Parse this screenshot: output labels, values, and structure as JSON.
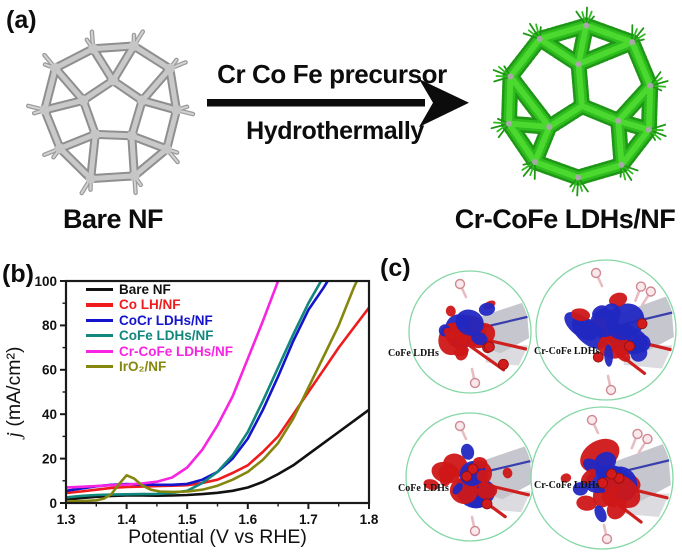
{
  "figure": {
    "panel_a": {
      "label": "(a)",
      "arrow_text_top": "Cr Co Fe precursor",
      "arrow_text_bottom": "Hydrothermally",
      "left_structure_label": "Bare NF",
      "right_structure_label": "Cr-CoFe LDHs/NF",
      "bare_color": "#c6c6c6",
      "ldh_color": "#2fbc1f"
    },
    "panel_b": {
      "label": "(b)"
    },
    "panel_c": {
      "label": "(c)",
      "ring_color": "#86d7a6",
      "lobe_colors": {
        "positive": "#cf1717",
        "negative": "#2128c2"
      },
      "circles": [
        {
          "label": "CoFe LDHs"
        },
        {
          "label": "Cr-CoFe LDHs"
        },
        {
          "label": "CoFe LDHs"
        },
        {
          "label": "Cr-CoFe LDHs"
        }
      ]
    }
  },
  "chart_data": {
    "type": "line",
    "title": "",
    "xlabel": "Potential (V vs RHE)",
    "ylabel": "j (mA/cm²)",
    "xlim": [
      1.3,
      1.8
    ],
    "ylim": [
      0,
      100
    ],
    "xticks": [
      "1.3",
      "1.4",
      "1.5",
      "1.6",
      "1.7",
      "1.8"
    ],
    "yticks": [
      "0",
      "20",
      "40",
      "60",
      "80",
      "100"
    ],
    "x_minor_step": 0.05,
    "y_minor_step": 10,
    "grid": false,
    "legend_position": "top-left",
    "x": [
      1.3,
      1.325,
      1.35,
      1.375,
      1.4,
      1.425,
      1.45,
      1.475,
      1.5,
      1.525,
      1.55,
      1.575,
      1.6,
      1.625,
      1.65,
      1.675,
      1.7,
      1.725,
      1.75,
      1.775,
      1.8
    ],
    "series": [
      {
        "name": "Bare NF",
        "color": "#111111",
        "values": [
          1.5,
          2.2,
          2.8,
          3.2,
          3.4,
          3.4,
          3.3,
          3.4,
          3.6,
          4,
          4.6,
          5.5,
          7,
          9.5,
          13,
          17,
          22,
          27,
          32,
          37,
          42
        ]
      },
      {
        "name": "Co LH/NF",
        "color": "#ee1c1c",
        "values": [
          4.5,
          5.2,
          6,
          6.8,
          7.2,
          7.4,
          7.6,
          7.8,
          8,
          9,
          10.5,
          13.5,
          17,
          23,
          30,
          40,
          50,
          60,
          70,
          79,
          88
        ]
      },
      {
        "name": "CoCr LDHs/NF",
        "color": "#1414cc",
        "values": [
          5.5,
          6.5,
          7.5,
          8.2,
          8.5,
          8.3,
          8.2,
          8.2,
          8.6,
          10.5,
          14,
          20,
          29,
          42,
          57,
          73,
          87,
          97,
          108,
          119,
          130
        ]
      },
      {
        "name": "CoFe LDHs/NF",
        "color": "#12877d",
        "values": [
          2.5,
          3.2,
          3.6,
          3.8,
          3.9,
          4,
          4.1,
          4.5,
          5.5,
          9,
          14,
          21.5,
          32,
          46,
          61,
          76,
          90,
          102,
          114,
          126,
          138
        ]
      },
      {
        "name": "Cr-CoFe LDHs/NF",
        "color": "#f724e2",
        "values": [
          7,
          7.3,
          7.6,
          8,
          8.3,
          8.8,
          9.6,
          11.5,
          16,
          24,
          35,
          48,
          65,
          82,
          100,
          117,
          134,
          151,
          168,
          185,
          202
        ]
      },
      {
        "name": "IrO₂/NF",
        "color": "#85860d",
        "x": [
          1.3,
          1.325,
          1.35,
          1.3625,
          1.375,
          1.3875,
          1.4,
          1.4125,
          1.425,
          1.44,
          1.455,
          1.475,
          1.5,
          1.525,
          1.55,
          1.575,
          1.6,
          1.625,
          1.65,
          1.675,
          1.7,
          1.725,
          1.75,
          1.775,
          1.8
        ],
        "values": [
          0.8,
          0.8,
          1.2,
          2,
          4,
          8.5,
          12.5,
          11,
          8,
          6,
          5.2,
          5,
          5.2,
          6,
          7.8,
          10.5,
          14,
          19.5,
          27,
          38,
          52,
          66,
          80,
          97,
          112
        ]
      }
    ]
  }
}
